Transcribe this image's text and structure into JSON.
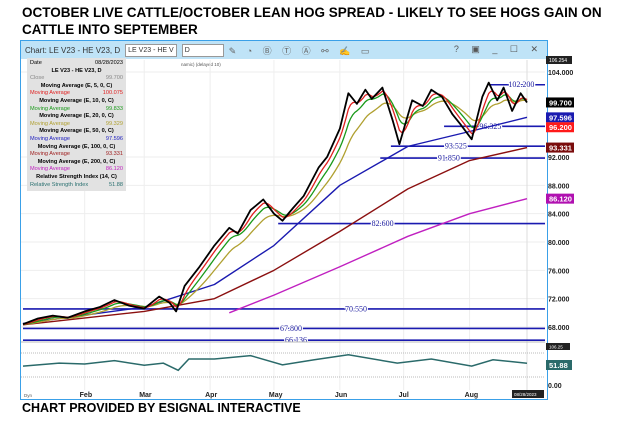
{
  "headline": "OCTOBER LIVE CATTLE/OCTOBER LEAN HOG SPREAD  - LIKELY TO SEE HOGS GAIN ON CATTLE INTO SEPTEMBER",
  "footer": "CHART PROVIDED BY ESIGNAL INTERACTIVE",
  "window": {
    "title": "Chart: LE V23 - HE V23, D",
    "symbol": "LE V23 - HE V",
    "interval": "D",
    "study_note": "namic) (delayed 10)",
    "icons": [
      "pencil-icon",
      "clock-icon",
      "b-icon",
      "t-icon",
      "a-icon",
      "link-icon",
      "edit-icon",
      "comment-icon"
    ]
  },
  "data_window": {
    "date_label": "Date",
    "date": "08/28/2023",
    "symbol": "LE V23 - HE V23, D",
    "rows": [
      {
        "header": "",
        "label": "Close",
        "value": "99.700",
        "color": "#888888"
      },
      {
        "header": "Moving Average (E, 5, 0, C)",
        "label": "Moving Average",
        "value": "100.075",
        "color": "#e02020"
      },
      {
        "header": "Moving Average (E, 10, 0, C)",
        "label": "Moving Average",
        "value": "99.833",
        "color": "#1a9a1a"
      },
      {
        "header": "Moving Average (E, 20, 0, C)",
        "label": "Moving Average",
        "value": "99.329",
        "color": "#b0a030"
      },
      {
        "header": "Moving Average (E, 50, 0, C)",
        "label": "Moving Average",
        "value": "97.596",
        "color": "#2020c0"
      },
      {
        "header": "Moving Average (E, 100, 0, C)",
        "label": "Moving Average",
        "value": "93.331",
        "color": "#a02020"
      },
      {
        "header": "Moving Average (E, 200, 0, C)",
        "label": "Moving Average",
        "value": "86.120",
        "color": "#c020c0"
      },
      {
        "header": "Relative Strength Index (14, C)",
        "label": "Relative Strength Index",
        "value": "51.88",
        "color": "#2a7070"
      }
    ]
  },
  "chart_data": {
    "type": "line",
    "x_ticks": [
      "Feb",
      "Mar",
      "Apr",
      "May",
      "Jun",
      "Jul",
      "Aug"
    ],
    "last_date": "08/28/2023",
    "first_label": "Dyn",
    "ylim": [
      66,
      106.254
    ],
    "top_label": "106.254",
    "y_ticks": [
      "104.000",
      "92.000",
      "88.000",
      "84.000",
      "80.000",
      "76.000",
      "72.000",
      "68.000"
    ],
    "y_tick_values": [
      104,
      92,
      88,
      84,
      80,
      76,
      72,
      68
    ],
    "close": [
      [
        "2023-01-03",
        68.4
      ],
      [
        "2023-01-10",
        69.2
      ],
      [
        "2023-01-17",
        69.6
      ],
      [
        "2023-01-24",
        69.3
      ],
      [
        "2023-02-01",
        70.2
      ],
      [
        "2023-02-08",
        70.8
      ],
      [
        "2023-02-15",
        71.8
      ],
      [
        "2023-02-22",
        71.0
      ],
      [
        "2023-03-01",
        70.6
      ],
      [
        "2023-03-08",
        72.3
      ],
      [
        "2023-03-13",
        71.4
      ],
      [
        "2023-03-16",
        70.2
      ],
      [
        "2023-03-20",
        73.8
      ],
      [
        "2023-03-27",
        76.5
      ],
      [
        "2023-04-03",
        79.5
      ],
      [
        "2023-04-10",
        82.0
      ],
      [
        "2023-04-14",
        81.2
      ],
      [
        "2023-04-20",
        84.5
      ],
      [
        "2023-04-26",
        86.0
      ],
      [
        "2023-05-01",
        84.0
      ],
      [
        "2023-05-05",
        83.0
      ],
      [
        "2023-05-10",
        84.8
      ],
      [
        "2023-05-15",
        86.5
      ],
      [
        "2023-05-22",
        90.5
      ],
      [
        "2023-05-26",
        92.0
      ],
      [
        "2023-06-01",
        96.0
      ],
      [
        "2023-06-05",
        101.0
      ],
      [
        "2023-06-09",
        99.5
      ],
      [
        "2023-06-13",
        101.5
      ],
      [
        "2023-06-16",
        100.2
      ],
      [
        "2023-06-21",
        101.8
      ],
      [
        "2023-06-26",
        97.0
      ],
      [
        "2023-06-29",
        93.8
      ],
      [
        "2023-07-05",
        100.0
      ],
      [
        "2023-07-10",
        99.2
      ],
      [
        "2023-07-14",
        101.5
      ],
      [
        "2023-07-19",
        100.5
      ],
      [
        "2023-07-24",
        98.0
      ],
      [
        "2023-07-28",
        96.5
      ],
      [
        "2023-08-02",
        94.5
      ],
      [
        "2023-08-07",
        100.5
      ],
      [
        "2023-08-10",
        102.5
      ],
      [
        "2023-08-14",
        100.0
      ],
      [
        "2023-08-17",
        101.8
      ],
      [
        "2023-08-21",
        98.5
      ],
      [
        "2023-08-25",
        101.0
      ],
      [
        "2023-08-28",
        99.7
      ]
    ],
    "ema50": [
      [
        "2023-01-03",
        68.5
      ],
      [
        "2023-03-01",
        70.8
      ],
      [
        "2023-04-03",
        74.0
      ],
      [
        "2023-05-01",
        79.5
      ],
      [
        "2023-06-01",
        88.0
      ],
      [
        "2023-07-03",
        93.5
      ],
      [
        "2023-08-01",
        95.6
      ],
      [
        "2023-08-28",
        97.596
      ]
    ],
    "ema100": [
      [
        "2023-01-03",
        68.3
      ],
      [
        "2023-03-01",
        70.2
      ],
      [
        "2023-04-03",
        72.0
      ],
      [
        "2023-05-01",
        76.0
      ],
      [
        "2023-06-01",
        81.5
      ],
      [
        "2023-07-03",
        87.5
      ],
      [
        "2023-08-01",
        91.5
      ],
      [
        "2023-08-28",
        93.331
      ]
    ],
    "ema200": [
      [
        "2023-04-10",
        70.0
      ],
      [
        "2023-05-01",
        72.5
      ],
      [
        "2023-06-01",
        76.5
      ],
      [
        "2023-07-03",
        80.8
      ],
      [
        "2023-08-01",
        84.0
      ],
      [
        "2023-08-28",
        86.12
      ]
    ],
    "levels": [
      {
        "value": 102.2,
        "label": "102.200",
        "from": "2023-08-10"
      },
      {
        "value": 96.325,
        "label": "96.325",
        "from": "2023-07-20"
      },
      {
        "value": 93.525,
        "label": "93.525",
        "from": "2023-06-25"
      },
      {
        "value": 91.85,
        "label": "91.850",
        "from": "2023-06-20"
      },
      {
        "value": 82.6,
        "label": "82.600",
        "from": "2023-05-03"
      },
      {
        "value": 70.55,
        "label": "70.550",
        "from": "2023-01-03"
      },
      {
        "value": 67.8,
        "label": "67.800",
        "from": "2023-01-03"
      },
      {
        "value": 66.136,
        "label": "66.136",
        "from": "2023-01-03"
      }
    ],
    "price_badges": [
      {
        "label": "99.700",
        "color": "#000000"
      },
      {
        "label": "97.596",
        "color": "#1a1ab0"
      },
      {
        "label": "96.200",
        "color": "#ff1a1a"
      },
      {
        "label": "93.331",
        "color": "#7a0c0c"
      },
      {
        "label": "86.120",
        "color": "#b010b0"
      }
    ],
    "rsi": {
      "top_label": "106.25",
      "bottom_label": "0.00",
      "value_label": "51.88",
      "points": [
        [
          "2023-01-03",
          45
        ],
        [
          "2023-01-20",
          52
        ],
        [
          "2023-02-01",
          50
        ],
        [
          "2023-02-15",
          58
        ],
        [
          "2023-03-01",
          47
        ],
        [
          "2023-03-10",
          52
        ],
        [
          "2023-03-17",
          35
        ],
        [
          "2023-03-22",
          62
        ],
        [
          "2023-04-03",
          62
        ],
        [
          "2023-04-20",
          70
        ],
        [
          "2023-05-05",
          48
        ],
        [
          "2023-05-20",
          60
        ],
        [
          "2023-06-05",
          72
        ],
        [
          "2023-06-28",
          52
        ],
        [
          "2023-07-14",
          62
        ],
        [
          "2023-08-02",
          45
        ],
        [
          "2023-08-12",
          60
        ],
        [
          "2023-08-28",
          51.88
        ]
      ]
    },
    "colors": {
      "close": "#000000",
      "ema5": "#e02020",
      "ema10": "#1a9a1a",
      "ema20": "#b0a030",
      "ema50": "#1a1ab0",
      "ema100": "#8b1010",
      "ema200": "#c020c0",
      "levels": "#1a1ab0",
      "rsi": "#2a6a6a"
    }
  }
}
